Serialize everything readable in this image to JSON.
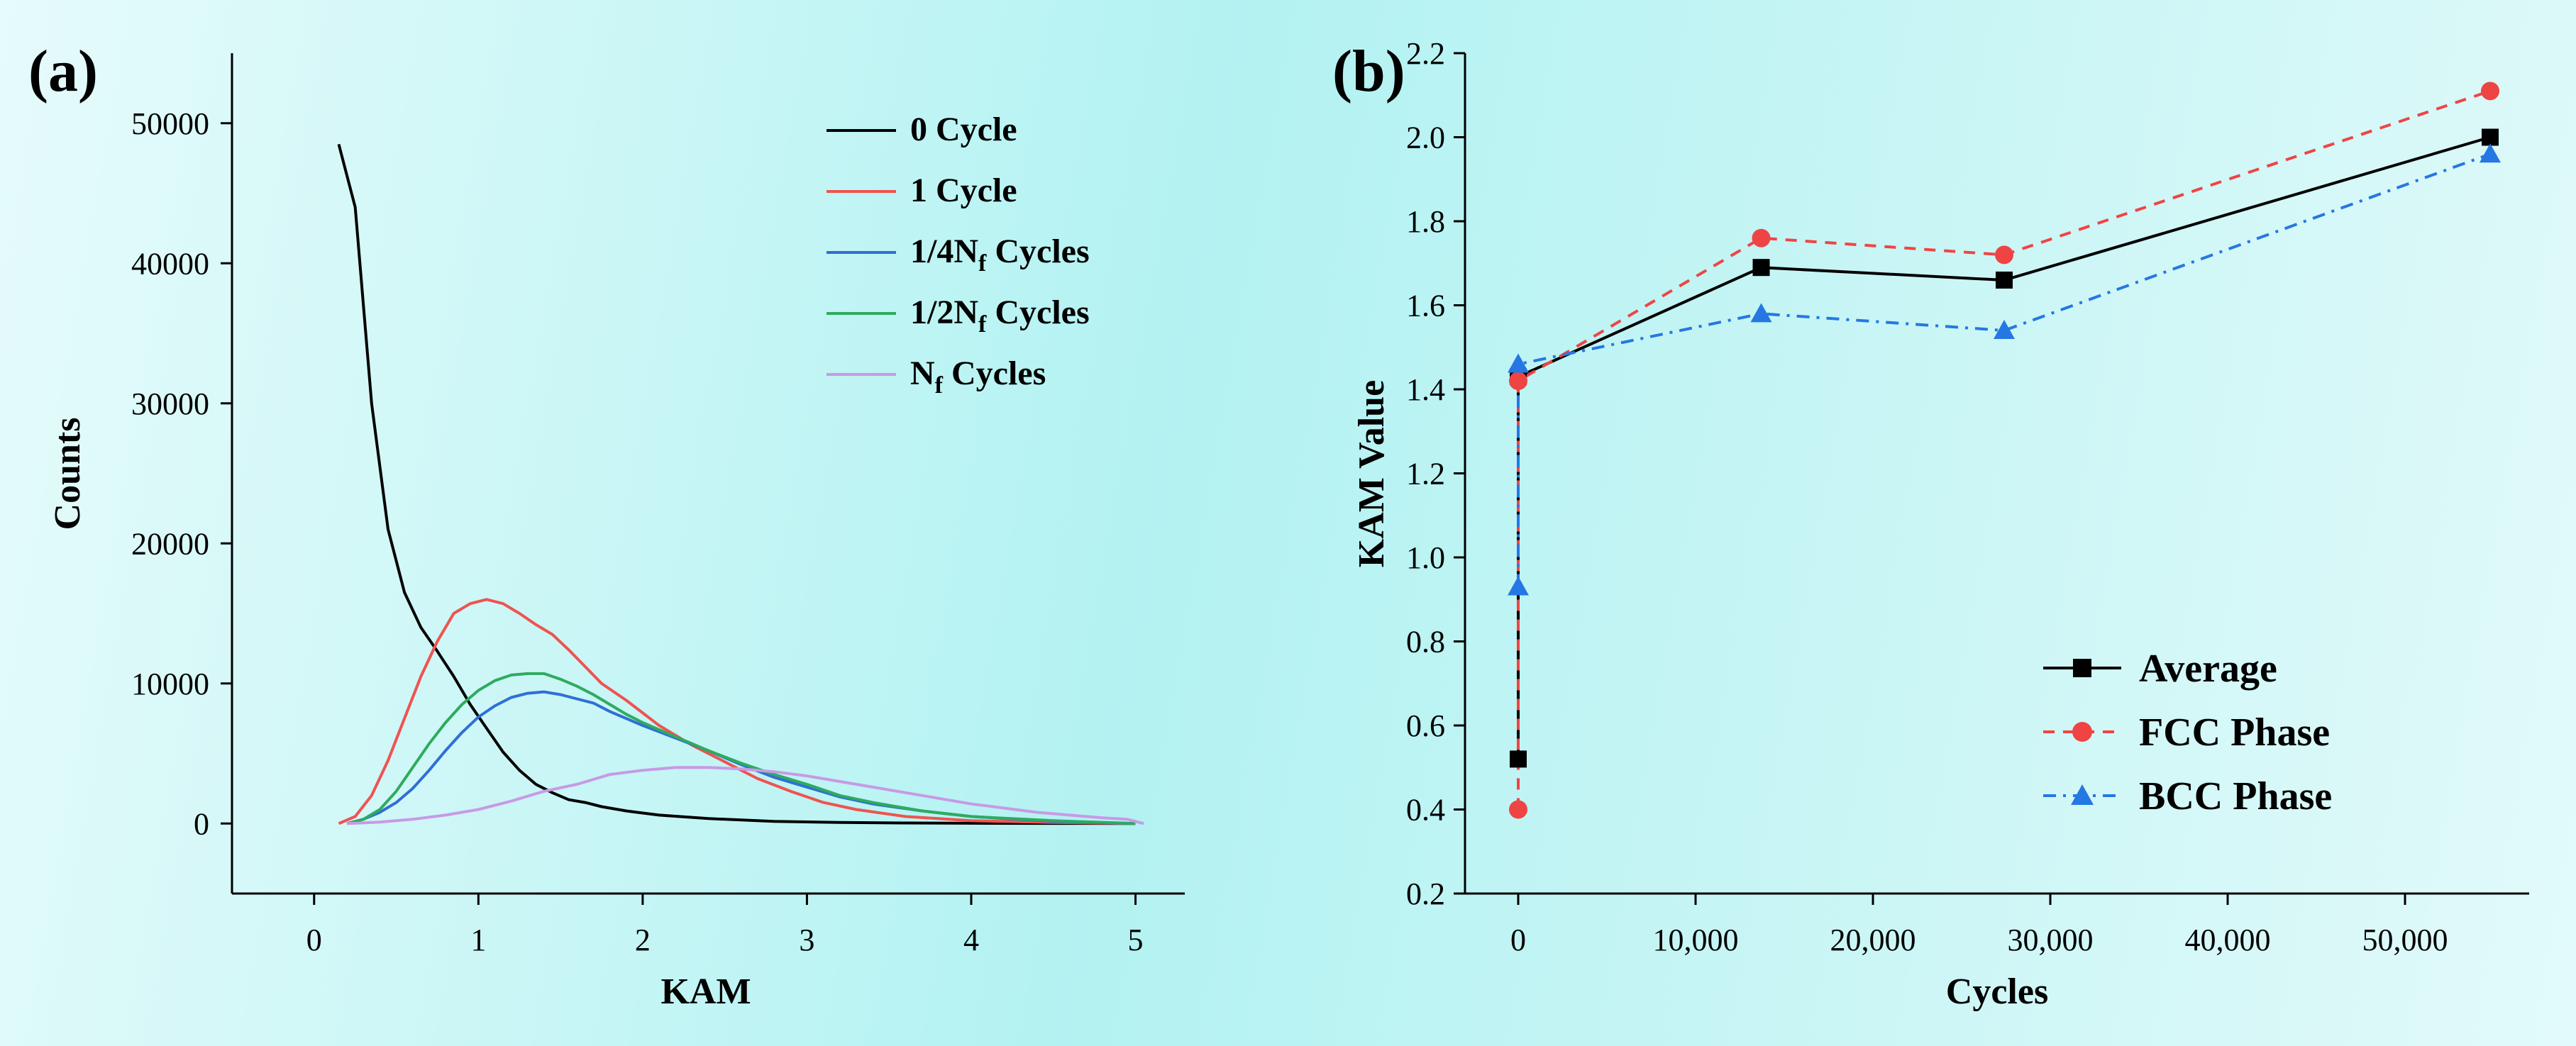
{
  "chart_data": [
    {
      "panel": "(a)",
      "type": "line",
      "xlabel": "KAM",
      "ylabel": "Counts",
      "xlim": [
        -0.5,
        5.3
      ],
      "ylim": [
        -5000,
        55000
      ],
      "xticks": [
        0,
        1,
        2,
        3,
        4,
        5
      ],
      "yticks": [
        0,
        10000,
        20000,
        30000,
        40000,
        50000
      ],
      "legend_position": "top-right",
      "series": [
        {
          "name": "0 Cycle",
          "color": "#000000",
          "points": [
            [
              0.15,
              48500
            ],
            [
              0.25,
              44000
            ],
            [
              0.35,
              30000
            ],
            [
              0.45,
              21000
            ],
            [
              0.55,
              16500
            ],
            [
              0.65,
              14000
            ],
            [
              0.75,
              12300
            ],
            [
              0.85,
              10500
            ],
            [
              0.95,
              8500
            ],
            [
              1.05,
              6800
            ],
            [
              1.15,
              5100
            ],
            [
              1.25,
              3800
            ],
            [
              1.35,
              2800
            ],
            [
              1.45,
              2200
            ],
            [
              1.55,
              1700
            ],
            [
              1.65,
              1500
            ],
            [
              1.75,
              1200
            ],
            [
              1.9,
              900
            ],
            [
              2.1,
              600
            ],
            [
              2.4,
              350
            ],
            [
              2.8,
              150
            ],
            [
              3.2,
              80
            ],
            [
              3.6,
              40
            ],
            [
              4.0,
              20
            ],
            [
              4.5,
              10
            ],
            [
              5.0,
              0
            ]
          ]
        },
        {
          "name": "1 Cycle",
          "color": "#ef5350",
          "points": [
            [
              0.15,
              0
            ],
            [
              0.25,
              500
            ],
            [
              0.35,
              2000
            ],
            [
              0.45,
              4500
            ],
            [
              0.55,
              7500
            ],
            [
              0.65,
              10500
            ],
            [
              0.75,
              13000
            ],
            [
              0.85,
              15000
            ],
            [
              0.95,
              15700
            ],
            [
              1.05,
              16000
            ],
            [
              1.15,
              15700
            ],
            [
              1.25,
              15000
            ],
            [
              1.35,
              14200
            ],
            [
              1.45,
              13500
            ],
            [
              1.55,
              12400
            ],
            [
              1.65,
              11200
            ],
            [
              1.75,
              10000
            ],
            [
              1.9,
              8800
            ],
            [
              2.1,
              7000
            ],
            [
              2.3,
              5600
            ],
            [
              2.5,
              4400
            ],
            [
              2.7,
              3200
            ],
            [
              2.9,
              2300
            ],
            [
              3.1,
              1500
            ],
            [
              3.3,
              1000
            ],
            [
              3.6,
              500
            ],
            [
              4.0,
              200
            ],
            [
              4.5,
              80
            ],
            [
              5.0,
              0
            ]
          ]
        },
        {
          "name": "1/4Nf Cycles",
          "color": "#2f6fd6",
          "points": [
            [
              0.2,
              0
            ],
            [
              0.3,
              300
            ],
            [
              0.4,
              800
            ],
            [
              0.5,
              1500
            ],
            [
              0.6,
              2500
            ],
            [
              0.7,
              3800
            ],
            [
              0.8,
              5200
            ],
            [
              0.9,
              6500
            ],
            [
              1.0,
              7600
            ],
            [
              1.1,
              8400
            ],
            [
              1.2,
              9000
            ],
            [
              1.3,
              9300
            ],
            [
              1.4,
              9400
            ],
            [
              1.5,
              9200
            ],
            [
              1.6,
              8900
            ],
            [
              1.7,
              8600
            ],
            [
              1.8,
              8000
            ],
            [
              1.9,
              7500
            ],
            [
              2.0,
              7000
            ],
            [
              2.2,
              6100
            ],
            [
              2.4,
              5200
            ],
            [
              2.6,
              4200
            ],
            [
              2.8,
              3300
            ],
            [
              3.0,
              2600
            ],
            [
              3.2,
              1900
            ],
            [
              3.4,
              1400
            ],
            [
              3.7,
              900
            ],
            [
              4.0,
              500
            ],
            [
              4.5,
              150
            ],
            [
              5.0,
              0
            ]
          ]
        },
        {
          "name": "1/2Nf Cycles",
          "color": "#2eab5e",
          "points": [
            [
              0.2,
              0
            ],
            [
              0.3,
              300
            ],
            [
              0.4,
              1000
            ],
            [
              0.5,
              2300
            ],
            [
              0.6,
              4000
            ],
            [
              0.7,
              5700
            ],
            [
              0.8,
              7200
            ],
            [
              0.9,
              8500
            ],
            [
              1.0,
              9500
            ],
            [
              1.1,
              10200
            ],
            [
              1.2,
              10600
            ],
            [
              1.3,
              10700
            ],
            [
              1.4,
              10700
            ],
            [
              1.5,
              10300
            ],
            [
              1.6,
              9800
            ],
            [
              1.7,
              9200
            ],
            [
              1.8,
              8500
            ],
            [
              1.9,
              7800
            ],
            [
              2.0,
              7200
            ],
            [
              2.2,
              6200
            ],
            [
              2.4,
              5200
            ],
            [
              2.6,
              4300
            ],
            [
              2.8,
              3500
            ],
            [
              3.0,
              2800
            ],
            [
              3.2,
              2000
            ],
            [
              3.4,
              1500
            ],
            [
              3.7,
              900
            ],
            [
              4.0,
              500
            ],
            [
              4.5,
              200
            ],
            [
              5.0,
              0
            ]
          ]
        },
        {
          "name": "Nf Cycles",
          "color": "#c79ae6",
          "points": [
            [
              0.2,
              0
            ],
            [
              0.4,
              100
            ],
            [
              0.6,
              300
            ],
            [
              0.8,
              600
            ],
            [
              1.0,
              1000
            ],
            [
              1.2,
              1600
            ],
            [
              1.4,
              2300
            ],
            [
              1.6,
              2800
            ],
            [
              1.8,
              3500
            ],
            [
              2.0,
              3800
            ],
            [
              2.2,
              4000
            ],
            [
              2.4,
              4000
            ],
            [
              2.6,
              3900
            ],
            [
              2.8,
              3700
            ],
            [
              3.0,
              3400
            ],
            [
              3.2,
              3000
            ],
            [
              3.4,
              2600
            ],
            [
              3.6,
              2200
            ],
            [
              3.8,
              1800
            ],
            [
              4.0,
              1400
            ],
            [
              4.2,
              1100
            ],
            [
              4.4,
              800
            ],
            [
              4.6,
              600
            ],
            [
              4.8,
              400
            ],
            [
              4.95,
              300
            ],
            [
              5.05,
              0
            ]
          ]
        }
      ]
    },
    {
      "panel": "(b)",
      "type": "line",
      "xlabel": "Cycles",
      "ylabel": "KAM Value",
      "xlim": [
        -3000,
        57000
      ],
      "ylim": [
        0.2,
        2.2
      ],
      "xticks": [
        0,
        10000,
        20000,
        30000,
        40000,
        50000
      ],
      "xtick_labels": [
        "0",
        "10,000",
        "20,000",
        "30,000",
        "40,000",
        "50,000"
      ],
      "yticks": [
        0.2,
        0.4,
        0.6,
        0.8,
        1.0,
        1.2,
        1.4,
        1.6,
        1.8,
        2.0,
        2.2
      ],
      "ytick_labels": [
        "0.2",
        "0.4",
        "0.6",
        "0.8",
        "1.0",
        "1.2",
        "1.4",
        "1.6",
        "1.8",
        "2.0",
        "2.2"
      ],
      "legend_position": "bottom-right",
      "series": [
        {
          "name": "Average",
          "color": "#000000",
          "marker": "square",
          "dash": "solid",
          "points": [
            [
              0,
              0.52
            ],
            [
              0,
              1.43
            ],
            [
              13700,
              1.69
            ],
            [
              27400,
              1.66
            ],
            [
              54800,
              2.0
            ]
          ]
        },
        {
          "name": "FCC Phase",
          "color": "#ef4444",
          "marker": "circle",
          "dash": "dashed",
          "points": [
            [
              0,
              0.4
            ],
            [
              0,
              1.42
            ],
            [
              13700,
              1.76
            ],
            [
              27400,
              1.72
            ],
            [
              54800,
              2.11
            ]
          ]
        },
        {
          "name": "BCC Phase",
          "color": "#2577e3",
          "marker": "triangle",
          "dash": "dashdot",
          "points": [
            [
              0,
              0.93
            ],
            [
              0,
              1.46
            ],
            [
              13700,
              1.58
            ],
            [
              27400,
              1.54
            ],
            [
              54800,
              1.96
            ]
          ]
        }
      ]
    }
  ]
}
